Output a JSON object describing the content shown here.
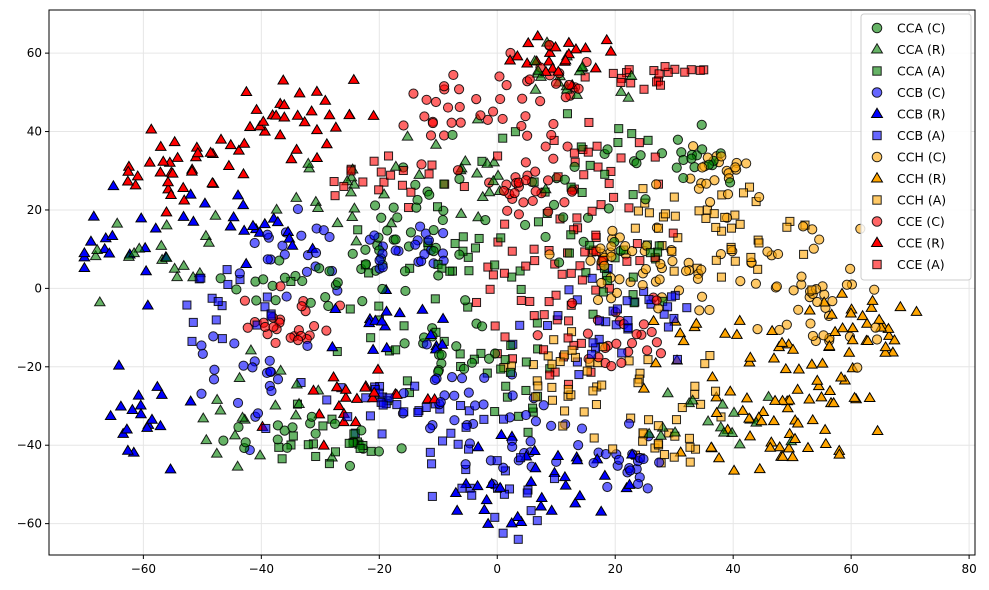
{
  "chart_data": {
    "type": "scatter",
    "title": "",
    "xlabel": "",
    "ylabel": "",
    "xlim": [
      -76,
      81
    ],
    "ylim": [
      -68,
      71
    ],
    "x_ticks": [
      -60,
      -40,
      -20,
      0,
      20,
      40,
      60,
      80
    ],
    "y_ticks": [
      -60,
      -40,
      -20,
      0,
      20,
      40,
      60
    ],
    "x_tick_labels": [
      "−60",
      "−40",
      "−20",
      "0",
      "20",
      "40",
      "60",
      "80"
    ],
    "y_tick_labels": [
      "−60",
      "−40",
      "−20",
      "0",
      "20",
      "40",
      "60"
    ],
    "grid": true,
    "legend_position": "top-right",
    "series": [
      {
        "name": "CCA (C)",
        "color": "#008000",
        "marker": "circle",
        "alpha": 0.6,
        "n": 130,
        "clusters": [
          [
            -35,
            3,
            7,
            5
          ],
          [
            -18,
            8,
            5,
            4
          ],
          [
            -30,
            -38,
            8,
            4
          ],
          [
            -12,
            20,
            5,
            8
          ],
          [
            15,
            25,
            6,
            10
          ],
          [
            33,
            33,
            4,
            3
          ],
          [
            -8,
            -15,
            5,
            5
          ]
        ]
      },
      {
        "name": "CCA (R)",
        "color": "#008000",
        "marker": "triangle",
        "alpha": 0.6,
        "n": 110,
        "clusters": [
          [
            -58,
            8,
            6,
            5
          ],
          [
            -42,
            -30,
            8,
            6
          ],
          [
            -25,
            25,
            5,
            6
          ],
          [
            10,
            55,
            5,
            4
          ],
          [
            40,
            -35,
            8,
            6
          ],
          [
            -5,
            30,
            5,
            5
          ]
        ]
      },
      {
        "name": "CCA (A)",
        "color": "#008000",
        "marker": "square",
        "alpha": 0.6,
        "n": 120,
        "clusters": [
          [
            -12,
            -10,
            8,
            8
          ],
          [
            -5,
            10,
            6,
            6
          ],
          [
            10,
            30,
            8,
            8
          ],
          [
            -28,
            -40,
            6,
            3
          ],
          [
            20,
            5,
            5,
            5
          ],
          [
            5,
            -25,
            6,
            6
          ]
        ]
      },
      {
        "name": "CCB (C)",
        "color": "#0000ff",
        "marker": "circle",
        "alpha": 0.6,
        "n": 130,
        "clusters": [
          [
            -42,
            -22,
            6,
            7
          ],
          [
            -35,
            10,
            5,
            5
          ],
          [
            5,
            -40,
            6,
            6
          ],
          [
            20,
            -45,
            5,
            5
          ],
          [
            -15,
            10,
            4,
            3
          ],
          [
            -8,
            -28,
            5,
            5
          ]
        ]
      },
      {
        "name": "CCB (R)",
        "color": "#0000ff",
        "marker": "triangle",
        "alpha": 1.0,
        "n": 110,
        "clusters": [
          [
            -60,
            -32,
            5,
            6
          ],
          [
            -62,
            12,
            4,
            6
          ],
          [
            -40,
            15,
            6,
            5
          ],
          [
            0,
            -55,
            5,
            5
          ],
          [
            12,
            -45,
            6,
            5
          ],
          [
            -20,
            -10,
            5,
            5
          ]
        ]
      },
      {
        "name": "CCB (A)",
        "color": "#0000ff",
        "marker": "square",
        "alpha": 0.6,
        "n": 110,
        "clusters": [
          [
            -22,
            -30,
            7,
            5
          ],
          [
            -10,
            -35,
            6,
            6
          ],
          [
            0,
            -52,
            5,
            5
          ],
          [
            15,
            -10,
            6,
            6
          ],
          [
            25,
            -5,
            6,
            5
          ],
          [
            -45,
            -5,
            6,
            5
          ]
        ]
      },
      {
        "name": "CCH (C)",
        "color": "#ffa500",
        "marker": "circle",
        "alpha": 0.6,
        "n": 120,
        "clusters": [
          [
            45,
            5,
            8,
            8
          ],
          [
            55,
            -5,
            6,
            6
          ],
          [
            30,
            5,
            6,
            6
          ],
          [
            20,
            8,
            4,
            4
          ],
          [
            38,
            28,
            4,
            5
          ]
        ]
      },
      {
        "name": "CCH (R)",
        "color": "#ffa500",
        "marker": "triangle",
        "alpha": 1.0,
        "n": 110,
        "clusters": [
          [
            40,
            -15,
            10,
            8
          ],
          [
            55,
            -25,
            6,
            6
          ],
          [
            45,
            -38,
            8,
            4
          ],
          [
            62,
            -10,
            4,
            4
          ]
        ]
      },
      {
        "name": "CCH (A)",
        "color": "#ffa500",
        "marker": "square",
        "alpha": 0.6,
        "n": 110,
        "clusters": [
          [
            25,
            -25,
            8,
            8
          ],
          [
            45,
            12,
            8,
            6
          ],
          [
            30,
            18,
            6,
            5
          ],
          [
            12,
            -20,
            6,
            6
          ],
          [
            28,
            -40,
            4,
            3
          ]
        ]
      },
      {
        "name": "CCE (C)",
        "color": "#ff0000",
        "marker": "circle",
        "alpha": 0.6,
        "n": 130,
        "clusters": [
          [
            -5,
            45,
            7,
            5
          ],
          [
            8,
            48,
            5,
            6
          ],
          [
            5,
            25,
            5,
            5
          ],
          [
            -35,
            -10,
            5,
            4
          ],
          [
            18,
            -15,
            5,
            5
          ]
        ]
      },
      {
        "name": "CCE (R)",
        "color": "#ff0000",
        "marker": "triangle",
        "alpha": 1.0,
        "n": 110,
        "clusters": [
          [
            -45,
            35,
            7,
            5
          ],
          [
            -32,
            47,
            5,
            4
          ],
          [
            10,
            58,
            5,
            4
          ],
          [
            -55,
            28,
            5,
            4
          ],
          [
            -25,
            -28,
            5,
            4
          ]
        ]
      },
      {
        "name": "CCE (A)",
        "color": "#ff0000",
        "marker": "square",
        "alpha": 0.6,
        "n": 120,
        "clusters": [
          [
            15,
            30,
            7,
            6
          ],
          [
            5,
            5,
            6,
            6
          ],
          [
            18,
            12,
            5,
            5
          ],
          [
            25,
            55,
            5,
            2
          ],
          [
            -18,
            28,
            5,
            3
          ],
          [
            8,
            -15,
            6,
            6
          ]
        ]
      }
    ]
  }
}
